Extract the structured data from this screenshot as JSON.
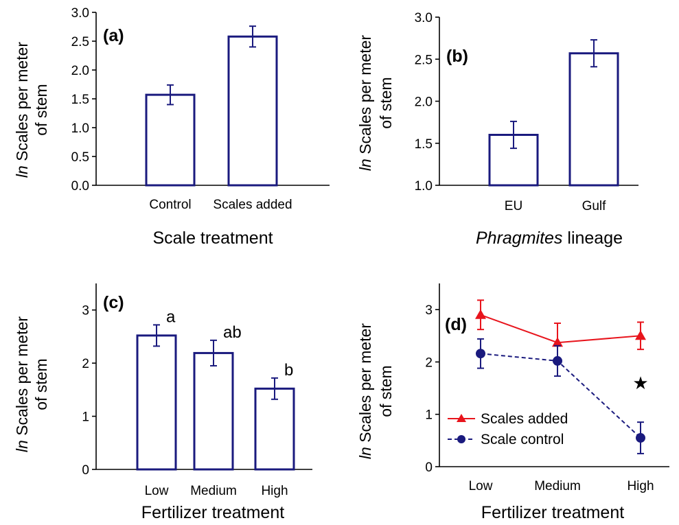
{
  "colors": {
    "bar_outline": "#1a1a7e",
    "scales_added": "#e8141c",
    "scale_control": "#1a1a7e"
  },
  "chart_data": [
    {
      "panel": "(a)",
      "type": "bar",
      "xlabel": "Scale treatment",
      "ylabel_italic": "ln",
      "ylabel_line1": " Scales per meter",
      "ylabel_line2": "of stem",
      "ylim": [
        0,
        3.0
      ],
      "yticks": [
        "0.0",
        "0.5",
        "1.0",
        "1.5",
        "2.0",
        "2.5",
        "3.0"
      ],
      "categories": [
        "Control",
        "Scales added"
      ],
      "values": [
        1.57,
        2.58
      ],
      "errors": [
        0.17,
        0.18
      ]
    },
    {
      "panel": "(b)",
      "type": "bar",
      "xlabel_italic": "Phragmites",
      "xlabel_rest": " lineage",
      "ylabel_italic": "ln",
      "ylabel_line1": " Scales per meter",
      "ylabel_line2": "of stem",
      "ylim": [
        1.0,
        3.0
      ],
      "yticks": [
        "1.0",
        "1.5",
        "2.0",
        "2.5",
        "3.0"
      ],
      "categories": [
        "EU",
        "Gulf"
      ],
      "values": [
        1.6,
        2.57
      ],
      "errors": [
        0.16,
        0.16
      ]
    },
    {
      "panel": "(c)",
      "type": "bar",
      "xlabel": "Fertilizer treatment",
      "ylabel_italic": "ln",
      "ylabel_line1": " Scales per meter",
      "ylabel_line2": "of stem",
      "ylim": [
        0,
        3.5
      ],
      "yticks": [
        "0",
        "1",
        "2",
        "3"
      ],
      "categories": [
        "Low",
        "Medium",
        "High"
      ],
      "values": [
        2.52,
        2.19,
        1.52
      ],
      "errors": [
        0.2,
        0.24,
        0.2
      ],
      "letters": [
        "a",
        "ab",
        "b"
      ]
    },
    {
      "panel": "(d)",
      "type": "line",
      "xlabel": "Fertilizer treatment",
      "ylabel_italic": "ln",
      "ylabel_line1": " Scales per meter",
      "ylabel_line2": "of stem",
      "ylim": [
        0,
        3.5
      ],
      "yticks": [
        "0",
        "1",
        "2",
        "3"
      ],
      "categories": [
        "Low",
        "Medium",
        "High"
      ],
      "legend_position": "bottom-left",
      "annotation": "★",
      "annotation_at": {
        "category": "High",
        "y": 1.6
      },
      "series": [
        {
          "name": "Scales added",
          "values": [
            2.9,
            2.37,
            2.5
          ],
          "errors": [
            0.28,
            0.37,
            0.26
          ],
          "marker": "triangle",
          "dash": false
        },
        {
          "name": "Scale control",
          "values": [
            2.16,
            2.02,
            0.55
          ],
          "errors": [
            0.28,
            0.29,
            0.3
          ],
          "marker": "circle",
          "dash": true
        }
      ]
    }
  ]
}
